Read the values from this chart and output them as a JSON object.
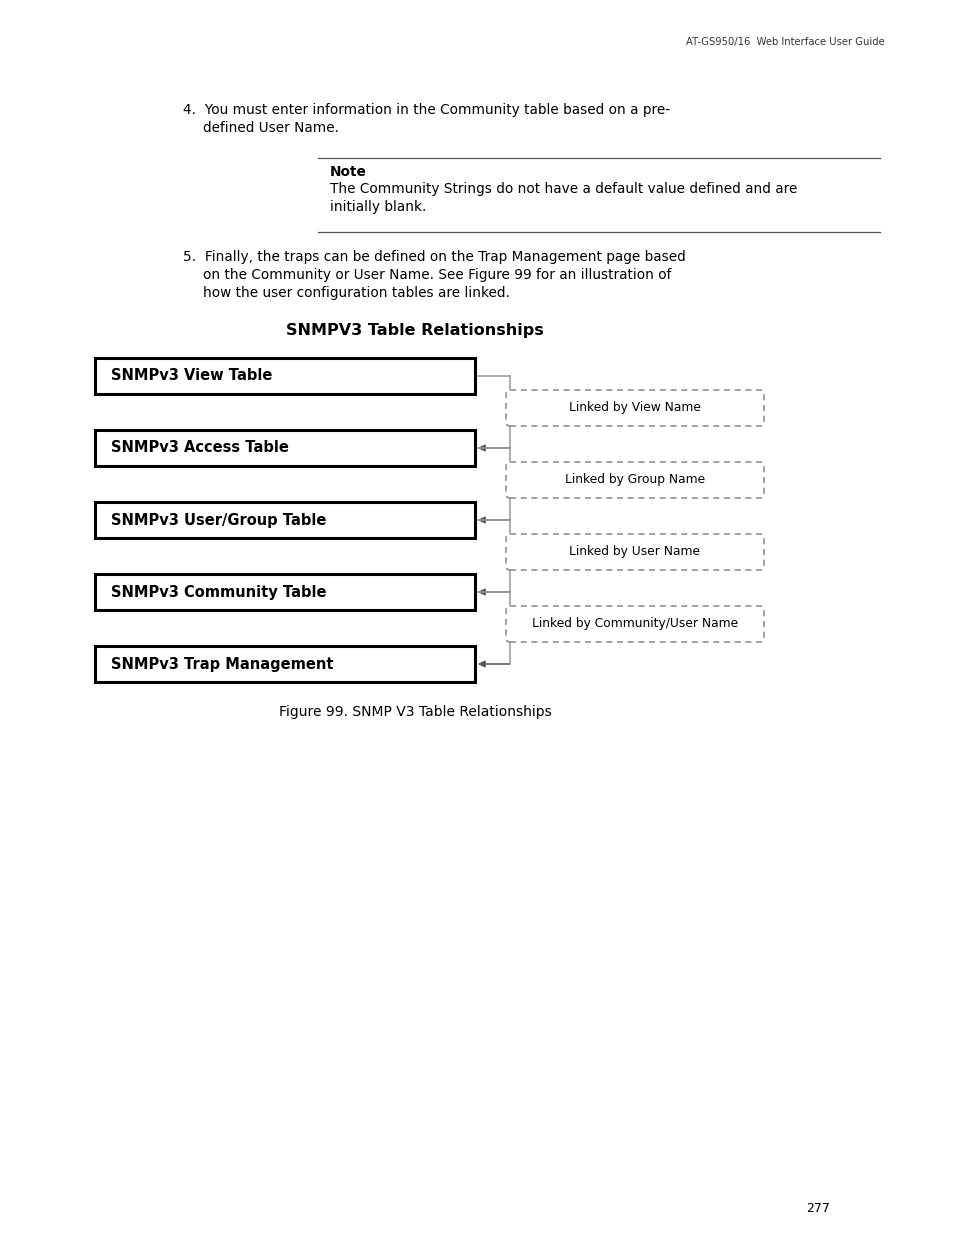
{
  "header_text": "AT-GS950/16  Web Interface User Guide",
  "page_number": "277",
  "bg_color": "#ffffff",
  "text_color": "#000000",
  "diagram_title": "SNMPV3 Table Relationships",
  "boxes": [
    "SNMPv3 View Table",
    "SNMPv3 Access Table",
    "SNMPv3 User/Group Table",
    "SNMPv3 Community Table",
    "SNMPv3 Trap Management"
  ],
  "link_labels": [
    "Linked by View Name",
    "Linked by Group Name",
    "Linked by User Name",
    "Linked by Community/User Name"
  ],
  "figure_caption": "Figure 99. SNMP V3 Table Relationships"
}
